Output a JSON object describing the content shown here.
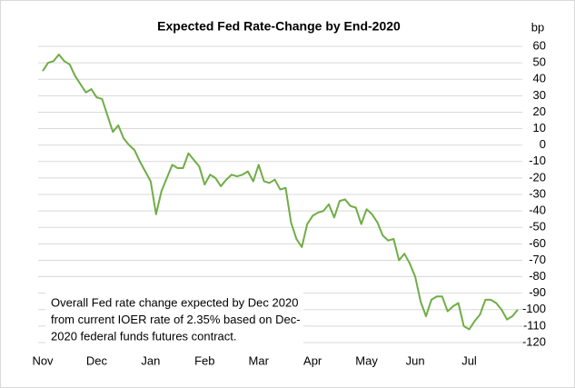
{
  "chart_data": {
    "type": "line",
    "title": "Expected Fed Rate-Change by End-2020",
    "y_axis_label": "bp",
    "categories": [
      "Nov",
      null,
      null,
      null,
      null,
      null,
      null,
      null,
      null,
      null,
      "Dec",
      null,
      null,
      null,
      null,
      null,
      null,
      null,
      null,
      null,
      "Jan",
      null,
      null,
      null,
      null,
      null,
      null,
      null,
      null,
      null,
      "Feb",
      null,
      null,
      null,
      null,
      null,
      null,
      null,
      null,
      null,
      "Mar",
      null,
      null,
      null,
      null,
      null,
      null,
      null,
      null,
      null,
      "Apr",
      null,
      null,
      null,
      null,
      null,
      null,
      null,
      null,
      null,
      "May",
      null,
      null,
      null,
      null,
      null,
      null,
      null,
      null,
      "Jun",
      null,
      null,
      null,
      null,
      null,
      null,
      null,
      null,
      null,
      "Jul",
      null,
      null,
      null,
      null,
      null,
      null,
      null,
      null,
      null
    ],
    "series": [
      {
        "color": "#70ad47",
        "values": [
          45,
          50,
          51,
          55,
          51,
          49,
          42,
          37,
          32,
          34,
          29,
          28,
          18,
          8,
          12,
          4,
          0,
          -3,
          -10,
          -16,
          -22,
          -42,
          -28,
          -20,
          -12,
          -14,
          -14,
          -5,
          -9,
          -13,
          -24,
          -18,
          -20,
          -25,
          -21,
          -18,
          -19,
          -18,
          -16,
          -22,
          -12,
          -22,
          -23,
          -21,
          -27,
          -26,
          -47,
          -57,
          -62,
          -48,
          -43,
          -41,
          -40,
          -36,
          -44,
          -34,
          -33,
          -37,
          -38,
          -48,
          -39,
          -42,
          -47,
          -55,
          -58,
          -57,
          -70,
          -66,
          -72,
          -80,
          -95,
          -104,
          -94,
          -92,
          -92,
          -101,
          -98,
          -96,
          -110,
          -112,
          -107,
          -103,
          -94,
          -94,
          -96,
          -100,
          -106,
          -104,
          -100
        ]
      }
    ],
    "ylim": [
      -120,
      60
    ],
    "yticks": [
      -120,
      -110,
      -100,
      -90,
      -80,
      -70,
      -60,
      -50,
      -40,
      -30,
      -20,
      -10,
      0,
      10,
      20,
      30,
      40,
      50,
      60
    ],
    "grid": true,
    "y_axis_side": "right",
    "annotation": [
      "Overall Fed rate change expected by Dec 2020",
      "from current IOER rate of 2.35%  based on Dec-",
      "2020  federal funds futures contract."
    ]
  }
}
